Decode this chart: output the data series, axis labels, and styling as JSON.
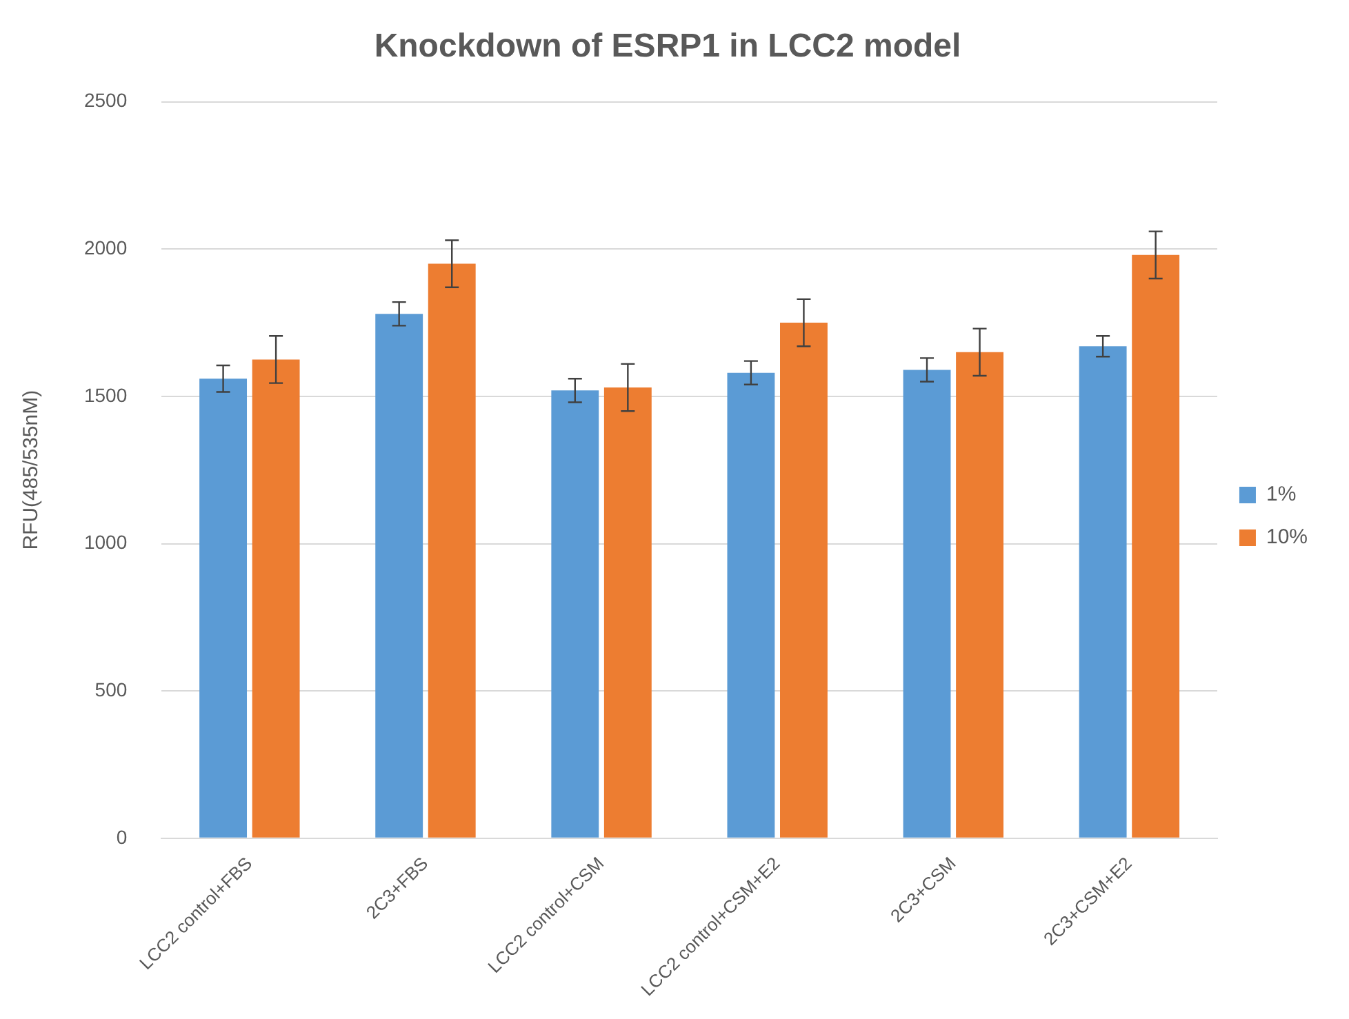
{
  "chart_data": {
    "type": "bar",
    "title": "Knockdown of ESRP1 in LCC2 model",
    "ylabel": "RFU(485/535nM)",
    "categories": [
      "LCC2 control+FBS",
      "2C3+FBS",
      "LCC2 control+CSM",
      "LCC2 control+CSM+E2",
      "2C3+CSM",
      "2C3+CSM+E2"
    ],
    "series": [
      {
        "name": "1%",
        "color": "#5b9bd5",
        "values": [
          1560,
          1780,
          1520,
          1580,
          1590,
          1670
        ],
        "errors": [
          45,
          40,
          40,
          40,
          40,
          35
        ]
      },
      {
        "name": "10%",
        "color": "#ed7d31",
        "values": [
          1625,
          1950,
          1530,
          1750,
          1650,
          1980
        ],
        "errors": [
          80,
          80,
          80,
          80,
          80,
          80
        ]
      }
    ],
    "ylim": [
      0,
      2500
    ],
    "yticks": [
      0,
      500,
      1000,
      1500,
      2000,
      2500
    ],
    "grid": "y",
    "legend": "right"
  }
}
